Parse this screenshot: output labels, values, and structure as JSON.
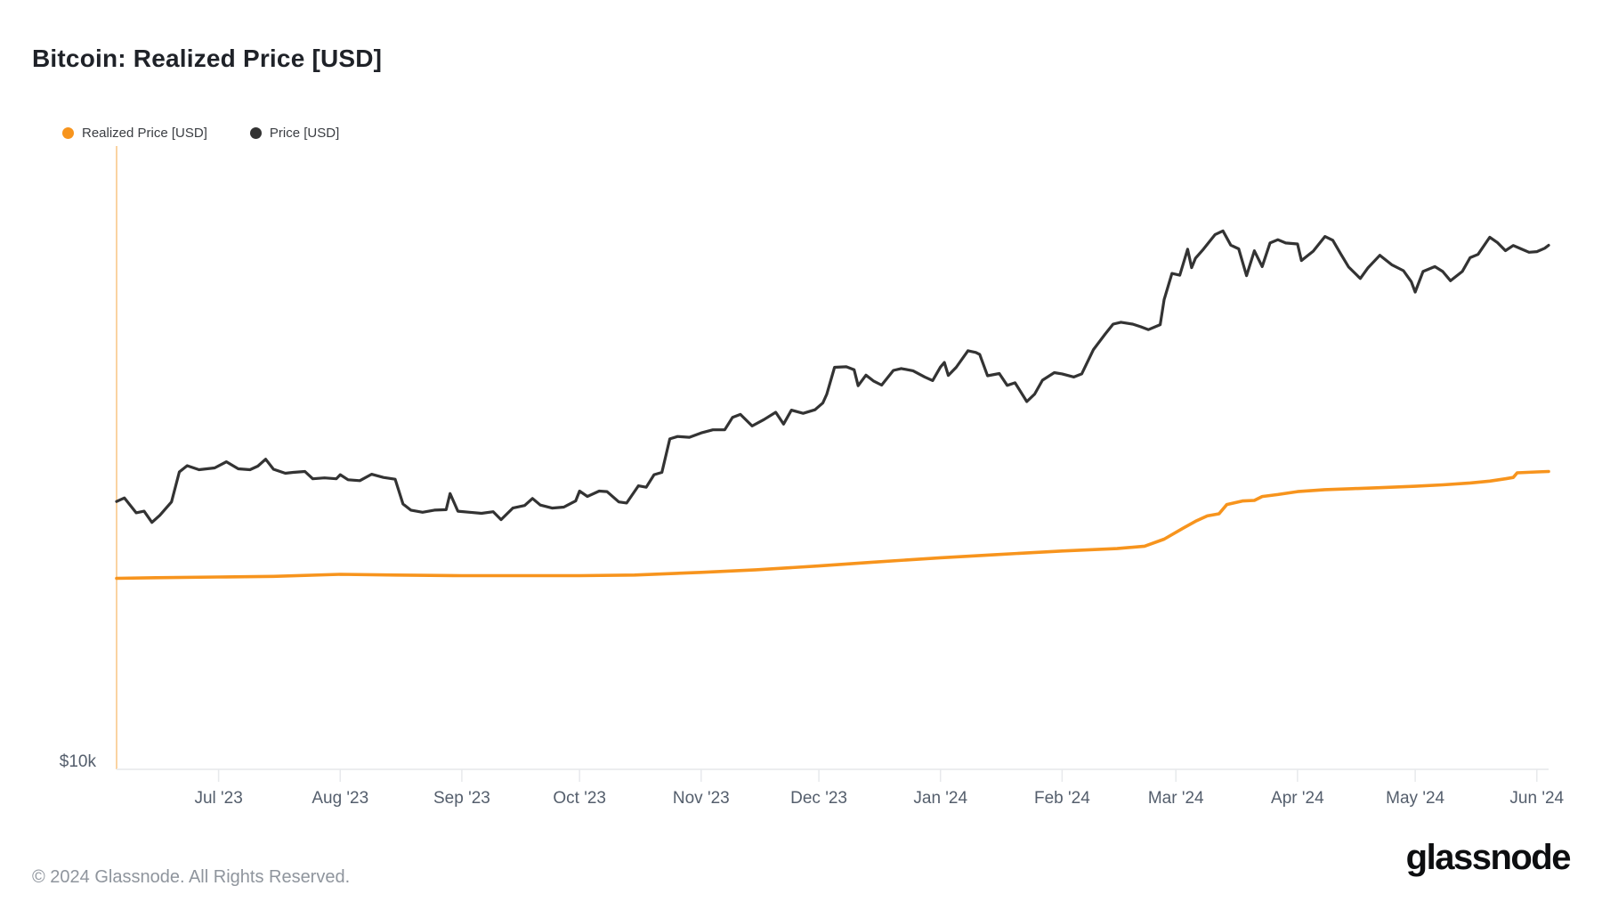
{
  "title": "Bitcoin: Realized Price [USD]",
  "legend": [
    {
      "label": "Realized Price [USD]",
      "color": "#F7941D"
    },
    {
      "label": "Price [USD]",
      "color": "#333333"
    }
  ],
  "y_axis": {
    "label": "$10k"
  },
  "x_axis": {
    "ticks": [
      {
        "label": "Jul '23",
        "date": "2023-07-01"
      },
      {
        "label": "Aug '23",
        "date": "2023-08-01"
      },
      {
        "label": "Sep '23",
        "date": "2023-09-01"
      },
      {
        "label": "Oct '23",
        "date": "2023-10-01"
      },
      {
        "label": "Nov '23",
        "date": "2023-11-01"
      },
      {
        "label": "Dec '23",
        "date": "2023-12-01"
      },
      {
        "label": "Jan '24",
        "date": "2024-01-01"
      },
      {
        "label": "Feb '24",
        "date": "2024-02-01"
      },
      {
        "label": "Mar '24",
        "date": "2024-03-01"
      },
      {
        "label": "Apr '24",
        "date": "2024-04-01"
      },
      {
        "label": "May '24",
        "date": "2024-05-01"
      },
      {
        "label": "Jun '24",
        "date": "2024-06-01"
      }
    ]
  },
  "footer": {
    "copyright": "© 2024 Glassnode. All Rights Reserved.",
    "logo": "glassnode"
  },
  "colors": {
    "accent_line": "#FAD3A2",
    "axis_line": "#ECEDEF",
    "tick_mark": "#E7E9EC",
    "realized_price": "#F7941D",
    "price": "#333333"
  },
  "chart_data": {
    "type": "line",
    "title": "Bitcoin: Realized Price [USD]",
    "x_range": [
      "2023-06-05",
      "2024-06-04"
    ],
    "y_scale": "log",
    "y_range_usd": [
      10000,
      100000
    ],
    "y_tick_labels": [
      "$10k"
    ],
    "grid": false,
    "legend_position": "top-left",
    "series": [
      {
        "name": "Realized Price [USD]",
        "color": "#F7941D",
        "points": [
          [
            "2023-06-05",
            20250
          ],
          [
            "2023-06-15",
            20300
          ],
          [
            "2023-07-01",
            20350
          ],
          [
            "2023-07-15",
            20400
          ],
          [
            "2023-08-01",
            20550
          ],
          [
            "2023-08-15",
            20500
          ],
          [
            "2023-09-01",
            20450
          ],
          [
            "2023-09-15",
            20450
          ],
          [
            "2023-10-01",
            20450
          ],
          [
            "2023-10-15",
            20500
          ],
          [
            "2023-11-01",
            20700
          ],
          [
            "2023-11-15",
            20900
          ],
          [
            "2023-12-01",
            21200
          ],
          [
            "2023-12-15",
            21500
          ],
          [
            "2024-01-01",
            21850
          ],
          [
            "2024-01-15",
            22100
          ],
          [
            "2024-02-01",
            22400
          ],
          [
            "2024-02-15",
            22600
          ],
          [
            "2024-02-22",
            22800
          ],
          [
            "2024-02-27",
            23400
          ],
          [
            "2024-03-03",
            24400
          ],
          [
            "2024-03-06",
            25000
          ],
          [
            "2024-03-09",
            25500
          ],
          [
            "2024-03-12",
            25700
          ],
          [
            "2024-03-14",
            26600
          ],
          [
            "2024-03-18",
            26950
          ],
          [
            "2024-03-21",
            27000
          ],
          [
            "2024-03-23",
            27400
          ],
          [
            "2024-03-27",
            27600
          ],
          [
            "2024-04-01",
            27900
          ],
          [
            "2024-04-08",
            28100
          ],
          [
            "2024-04-15",
            28200
          ],
          [
            "2024-04-22",
            28300
          ],
          [
            "2024-05-01",
            28450
          ],
          [
            "2024-05-08",
            28600
          ],
          [
            "2024-05-15",
            28800
          ],
          [
            "2024-05-20",
            29000
          ],
          [
            "2024-05-24",
            29250
          ],
          [
            "2024-05-26",
            29400
          ],
          [
            "2024-05-27",
            29900
          ],
          [
            "2024-06-01",
            30000
          ],
          [
            "2024-06-04",
            30050
          ]
        ]
      },
      {
        "name": "Price [USD]",
        "color": "#333333",
        "points": [
          [
            "2023-06-05",
            26900
          ],
          [
            "2023-06-07",
            27250
          ],
          [
            "2023-06-10",
            25800
          ],
          [
            "2023-06-12",
            25950
          ],
          [
            "2023-06-14",
            24900
          ],
          [
            "2023-06-16",
            25550
          ],
          [
            "2023-06-19",
            26850
          ],
          [
            "2023-06-21",
            30000
          ],
          [
            "2023-06-23",
            30700
          ],
          [
            "2023-06-26",
            30250
          ],
          [
            "2023-06-30",
            30450
          ],
          [
            "2023-07-03",
            31150
          ],
          [
            "2023-07-06",
            30350
          ],
          [
            "2023-07-09",
            30250
          ],
          [
            "2023-07-11",
            30650
          ],
          [
            "2023-07-13",
            31450
          ],
          [
            "2023-07-15",
            30300
          ],
          [
            "2023-07-18",
            29850
          ],
          [
            "2023-07-20",
            29950
          ],
          [
            "2023-07-23",
            30050
          ],
          [
            "2023-07-25",
            29250
          ],
          [
            "2023-07-28",
            29350
          ],
          [
            "2023-07-31",
            29250
          ],
          [
            "2023-08-01",
            29700
          ],
          [
            "2023-08-03",
            29150
          ],
          [
            "2023-08-06",
            29050
          ],
          [
            "2023-08-09",
            29750
          ],
          [
            "2023-08-12",
            29400
          ],
          [
            "2023-08-15",
            29200
          ],
          [
            "2023-08-17",
            26650
          ],
          [
            "2023-08-19",
            26050
          ],
          [
            "2023-08-22",
            25850
          ],
          [
            "2023-08-25",
            26050
          ],
          [
            "2023-08-28",
            26100
          ],
          [
            "2023-08-29",
            27700
          ],
          [
            "2023-08-31",
            25950
          ],
          [
            "2023-09-03",
            25850
          ],
          [
            "2023-09-06",
            25750
          ],
          [
            "2023-09-09",
            25900
          ],
          [
            "2023-09-11",
            25150
          ],
          [
            "2023-09-14",
            26250
          ],
          [
            "2023-09-17",
            26500
          ],
          [
            "2023-09-19",
            27200
          ],
          [
            "2023-09-21",
            26550
          ],
          [
            "2023-09-24",
            26250
          ],
          [
            "2023-09-27",
            26350
          ],
          [
            "2023-09-30",
            26950
          ],
          [
            "2023-10-01",
            27950
          ],
          [
            "2023-10-03",
            27400
          ],
          [
            "2023-10-06",
            27950
          ],
          [
            "2023-10-08",
            27900
          ],
          [
            "2023-10-11",
            26850
          ],
          [
            "2023-10-13",
            26750
          ],
          [
            "2023-10-16",
            28500
          ],
          [
            "2023-10-18",
            28350
          ],
          [
            "2023-10-20",
            29700
          ],
          [
            "2023-10-22",
            29950
          ],
          [
            "2023-10-24",
            33900
          ],
          [
            "2023-10-26",
            34200
          ],
          [
            "2023-10-29",
            34100
          ],
          [
            "2023-11-01",
            34650
          ],
          [
            "2023-11-04",
            35050
          ],
          [
            "2023-11-07",
            35050
          ],
          [
            "2023-11-09",
            36700
          ],
          [
            "2023-11-11",
            37100
          ],
          [
            "2023-11-14",
            35550
          ],
          [
            "2023-11-17",
            36400
          ],
          [
            "2023-11-20",
            37400
          ],
          [
            "2023-11-22",
            35800
          ],
          [
            "2023-11-24",
            37700
          ],
          [
            "2023-11-27",
            37250
          ],
          [
            "2023-11-30",
            37750
          ],
          [
            "2023-12-02",
            38700
          ],
          [
            "2023-12-03",
            39950
          ],
          [
            "2023-12-05",
            44150
          ],
          [
            "2023-12-08",
            44250
          ],
          [
            "2023-12-10",
            43750
          ],
          [
            "2023-12-11",
            41250
          ],
          [
            "2023-12-13",
            42900
          ],
          [
            "2023-12-15",
            41950
          ],
          [
            "2023-12-17",
            41350
          ],
          [
            "2023-12-20",
            43650
          ],
          [
            "2023-12-22",
            43950
          ],
          [
            "2023-12-25",
            43600
          ],
          [
            "2023-12-28",
            42600
          ],
          [
            "2023-12-30",
            42050
          ],
          [
            "2024-01-01",
            44200
          ],
          [
            "2024-01-02",
            44950
          ],
          [
            "2024-01-03",
            42850
          ],
          [
            "2024-01-05",
            44150
          ],
          [
            "2024-01-08",
            46950
          ],
          [
            "2024-01-10",
            46650
          ],
          [
            "2024-01-11",
            46300
          ],
          [
            "2024-01-13",
            42800
          ],
          [
            "2024-01-16",
            43150
          ],
          [
            "2024-01-18",
            41300
          ],
          [
            "2024-01-20",
            41700
          ],
          [
            "2024-01-23",
            38900
          ],
          [
            "2024-01-25",
            40000
          ],
          [
            "2024-01-27",
            42100
          ],
          [
            "2024-01-30",
            43300
          ],
          [
            "2024-02-01",
            43100
          ],
          [
            "2024-02-04",
            42600
          ],
          [
            "2024-02-06",
            43100
          ],
          [
            "2024-02-09",
            47150
          ],
          [
            "2024-02-12",
            49950
          ],
          [
            "2024-02-14",
            51800
          ],
          [
            "2024-02-16",
            52150
          ],
          [
            "2024-02-19",
            51800
          ],
          [
            "2024-02-21",
            51300
          ],
          [
            "2024-02-23",
            50750
          ],
          [
            "2024-02-26",
            51700
          ],
          [
            "2024-02-27",
            56700
          ],
          [
            "2024-02-29",
            62450
          ],
          [
            "2024-03-02",
            62050
          ],
          [
            "2024-03-04",
            68300
          ],
          [
            "2024-03-05",
            63800
          ],
          [
            "2024-03-06",
            66100
          ],
          [
            "2024-03-08",
            68300
          ],
          [
            "2024-03-11",
            72100
          ],
          [
            "2024-03-13",
            73100
          ],
          [
            "2024-03-15",
            69350
          ],
          [
            "2024-03-17",
            68400
          ],
          [
            "2024-03-19",
            61950
          ],
          [
            "2024-03-21",
            67900
          ],
          [
            "2024-03-23",
            64050
          ],
          [
            "2024-03-25",
            69900
          ],
          [
            "2024-03-27",
            70750
          ],
          [
            "2024-03-29",
            69900
          ],
          [
            "2024-04-01",
            69650
          ],
          [
            "2024-04-02",
            65500
          ],
          [
            "2024-04-05",
            67800
          ],
          [
            "2024-04-08",
            71600
          ],
          [
            "2024-04-10",
            70600
          ],
          [
            "2024-04-12",
            67150
          ],
          [
            "2024-04-14",
            64000
          ],
          [
            "2024-04-17",
            61300
          ],
          [
            "2024-04-19",
            63800
          ],
          [
            "2024-04-22",
            66800
          ],
          [
            "2024-04-25",
            64500
          ],
          [
            "2024-04-28",
            63100
          ],
          [
            "2024-04-30",
            60600
          ],
          [
            "2024-05-01",
            58300
          ],
          [
            "2024-05-03",
            62900
          ],
          [
            "2024-05-06",
            64050
          ],
          [
            "2024-05-08",
            62900
          ],
          [
            "2024-05-10",
            60800
          ],
          [
            "2024-05-13",
            62900
          ],
          [
            "2024-05-15",
            66200
          ],
          [
            "2024-05-17",
            67000
          ],
          [
            "2024-05-20",
            71400
          ],
          [
            "2024-05-22",
            69950
          ],
          [
            "2024-05-24",
            67950
          ],
          [
            "2024-05-26",
            69250
          ],
          [
            "2024-05-28",
            68400
          ],
          [
            "2024-05-30",
            67550
          ],
          [
            "2024-06-01",
            67700
          ],
          [
            "2024-06-03",
            68550
          ],
          [
            "2024-06-04",
            69300
          ]
        ]
      }
    ]
  }
}
